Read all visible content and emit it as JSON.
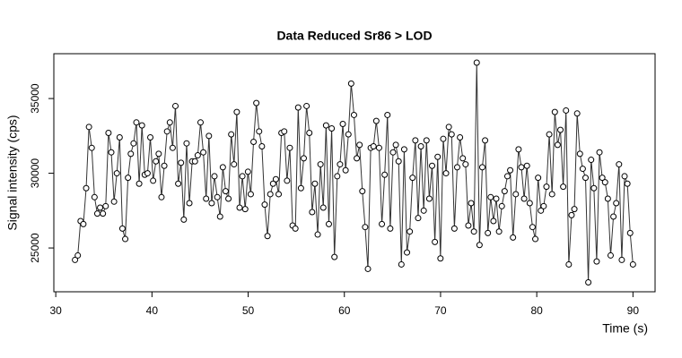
{
  "chart_data": {
    "type": "line",
    "title": "Data Reduced Sr86 > LOD",
    "x_label": "Time (s)",
    "y_label": "Signal intensity (cps)",
    "color": "#333333",
    "markers": true,
    "xlim": [
      29.8,
      92.3
    ],
    "xticks": [
      30,
      40,
      50,
      60,
      70,
      80,
      90
    ],
    "ylim": [
      22070,
      38000
    ],
    "yticks": [
      25000,
      30000,
      35000
    ],
    "x": [
      32,
      32.29,
      32.58,
      32.87,
      33.16,
      33.45,
      33.74,
      34.03,
      34.32,
      34.61,
      34.9,
      35.19,
      35.48,
      35.77,
      36.06,
      36.35,
      36.64,
      36.93,
      37.22,
      37.51,
      37.8,
      38.09,
      38.38,
      38.67,
      38.96,
      39.25,
      39.54,
      39.83,
      40.12,
      40.41,
      40.7,
      40.99,
      41.28,
      41.57,
      41.86,
      42.15,
      42.44,
      42.73,
      43.02,
      43.31,
      43.6,
      43.89,
      44.18,
      44.47,
      44.76,
      45.05,
      45.34,
      45.63,
      45.92,
      46.21,
      46.5,
      46.79,
      47.08,
      47.37,
      47.66,
      47.95,
      48.24,
      48.53,
      48.82,
      49.11,
      49.4,
      49.69,
      49.98,
      50.27,
      50.56,
      50.85,
      51.14,
      51.43,
      51.72,
      52.01,
      52.3,
      52.59,
      52.88,
      53.17,
      53.46,
      53.75,
      54.04,
      54.33,
      54.62,
      54.91,
      55.2,
      55.49,
      55.78,
      56.07,
      56.36,
      56.65,
      56.94,
      57.23,
      57.52,
      57.81,
      58.1,
      58.39,
      58.68,
      58.97,
      59.26,
      59.55,
      59.84,
      60.13,
      60.42,
      60.71,
      61,
      61.29,
      61.58,
      61.87,
      62.16,
      62.45,
      62.74,
      63.03,
      63.32,
      63.61,
      63.9,
      64.19,
      64.48,
      64.77,
      65.06,
      65.35,
      65.64,
      65.93,
      66.22,
      66.51,
      66.8,
      67.09,
      67.38,
      67.67,
      67.96,
      68.25,
      68.54,
      68.83,
      69.12,
      69.41,
      69.7,
      69.99,
      70.28,
      70.57,
      70.86,
      71.15,
      71.44,
      71.73,
      72.02,
      72.31,
      72.6,
      72.89,
      73.18,
      73.47,
      73.76,
      74.05,
      74.34,
      74.63,
      74.92,
      75.21,
      75.5,
      75.79,
      76.08,
      76.37,
      76.66,
      76.95,
      77.24,
      77.53,
      77.82,
      78.11,
      78.4,
      78.69,
      78.98,
      79.27,
      79.56,
      79.85,
      80.14,
      80.43,
      80.72,
      81.01,
      81.3,
      81.59,
      81.88,
      82.17,
      82.46,
      82.75,
      83.04,
      83.33,
      83.62,
      83.91,
      84.2,
      84.49,
      84.78,
      85.07,
      85.36,
      85.65,
      85.94,
      86.23,
      86.52,
      86.81,
      87.1,
      87.39,
      87.68,
      87.97,
      88.26,
      88.55,
      88.84,
      89.13,
      89.42,
      89.71,
      90
    ],
    "values": [
      24200,
      24500,
      26800,
      26600,
      29000,
      33100,
      31700,
      28400,
      27300,
      27700,
      27300,
      27800,
      32700,
      31400,
      28100,
      30000,
      32400,
      26300,
      25600,
      29700,
      31300,
      32000,
      33400,
      29300,
      33200,
      29900,
      30000,
      32400,
      29500,
      30800,
      31300,
      28400,
      30500,
      32800,
      33400,
      31700,
      34500,
      29300,
      30700,
      26900,
      32000,
      28000,
      30800,
      30800,
      31200,
      33400,
      31400,
      28300,
      32500,
      28000,
      29800,
      28400,
      27100,
      30400,
      28800,
      28300,
      32600,
      30600,
      34100,
      27700,
      29800,
      27600,
      30100,
      28600,
      32100,
      34700,
      32800,
      31800,
      27900,
      25800,
      28600,
      29300,
      29600,
      28600,
      32700,
      32800,
      29500,
      31700,
      26500,
      26300,
      34400,
      29000,
      31000,
      34500,
      32700,
      27400,
      29300,
      25900,
      30600,
      27700,
      33200,
      26600,
      33000,
      24400,
      29800,
      30600,
      33300,
      30200,
      32600,
      36000,
      33900,
      31000,
      31900,
      28800,
      26400,
      23600,
      31700,
      31800,
      33500,
      31700,
      26600,
      29900,
      33900,
      26300,
      31400,
      31900,
      30800,
      23900,
      31600,
      24700,
      26100,
      29700,
      32200,
      27000,
      31800,
      27500,
      32200,
      28300,
      30500,
      25400,
      31100,
      24300,
      32300,
      30000,
      33100,
      32600,
      26300,
      30400,
      32400,
      31000,
      30600,
      26500,
      28000,
      26100,
      37400,
      25200,
      30400,
      32200,
      26000,
      28400,
      26800,
      28300,
      26100,
      27800,
      28800,
      29800,
      30200,
      25700,
      28600,
      31600,
      30400,
      28300,
      30500,
      28000,
      26400,
      25600,
      29700,
      27500,
      27800,
      29100,
      32600,
      28600,
      34100,
      31900,
      32900,
      29100,
      34200,
      23900,
      27200,
      27600,
      34000,
      31300,
      30300,
      29700,
      22700,
      30900,
      29000,
      24100,
      31400,
      29700,
      29400,
      28300,
      24500,
      27100,
      28000,
      30600,
      24200,
      29800,
      29300,
      26000,
      23900
    ]
  }
}
